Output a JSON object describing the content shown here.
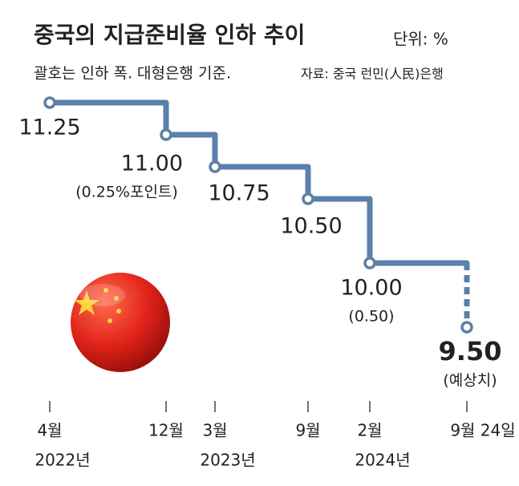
{
  "chart_data": {
    "type": "step",
    "title": "중국의 지급준비율 인하 추이",
    "unit": "단위: %",
    "subtitle": "괄호는 인하 폭. 대형은행 기준.",
    "source": "자료: 중국 런민(人民)은행",
    "categories": [
      "4월",
      "12월",
      "3월",
      "9월",
      "2월",
      "9월 24일"
    ],
    "years": [
      "2022년",
      null,
      "2023년",
      null,
      "2024년",
      null
    ],
    "values": [
      11.25,
      11.0,
      10.75,
      10.5,
      10.0,
      9.5
    ],
    "value_labels": [
      "11.25",
      "11.00",
      "10.75",
      "10.50",
      "10.00",
      "9.50"
    ],
    "notes": [
      null,
      "(0.25%포인트)",
      null,
      null,
      "(0.50)",
      "(예상치)"
    ],
    "color": "#5b80a9"
  }
}
